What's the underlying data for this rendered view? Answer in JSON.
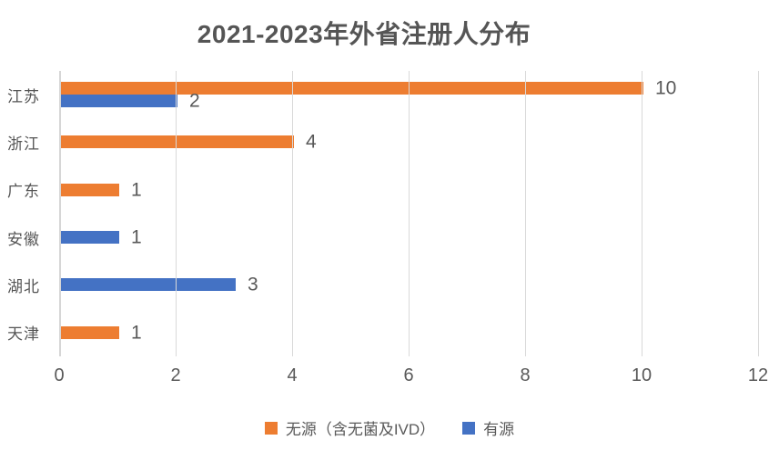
{
  "chart_data": {
    "type": "bar",
    "orientation": "horizontal",
    "title": "2021-2023年外省注册人分布",
    "categories": [
      "江苏",
      "浙江",
      "广东",
      "安徽",
      "湖北",
      "天津"
    ],
    "series": [
      {
        "name": "无源（含无菌及IVD）",
        "color": "#ED7D31",
        "values": [
          10,
          4,
          1,
          0,
          0,
          1
        ]
      },
      {
        "name": "有源",
        "color": "#4472C4",
        "values": [
          2,
          0,
          0,
          1,
          3,
          0
        ]
      }
    ],
    "data_labels": [
      {
        "category": "江苏",
        "series": "无源（含无菌及IVD）",
        "label": "10"
      },
      {
        "category": "江苏",
        "series": "有源",
        "label": "2"
      },
      {
        "category": "浙江",
        "series": "无源（含无菌及IVD）",
        "label": "4"
      },
      {
        "category": "广东",
        "series": "无源（含无菌及IVD）",
        "label": "1"
      },
      {
        "category": "安徽",
        "series": "有源",
        "label": "1"
      },
      {
        "category": "湖北",
        "series": "有源",
        "label": "3"
      },
      {
        "category": "天津",
        "series": "无源（含无菌及IVD）",
        "label": "1"
      }
    ],
    "xlim": [
      0,
      12
    ],
    "x_ticks": [
      "0",
      "2",
      "4",
      "6",
      "8",
      "10",
      "12"
    ],
    "grid": "vertical-on",
    "legend_position": "bottom"
  },
  "style_colors": {
    "title_text": "#555555",
    "axis_text": "#595959",
    "gridline": "#D9D9D9",
    "background": "#FFFFFF"
  }
}
